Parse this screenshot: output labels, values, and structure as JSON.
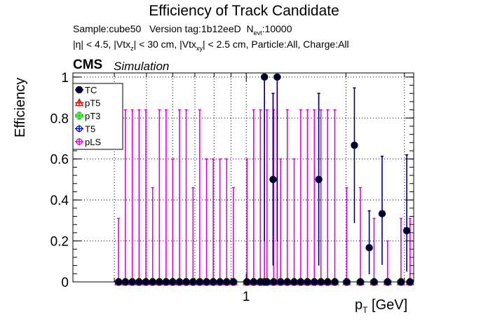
{
  "title": "Efficiency of Track Candidate",
  "subtitle": {
    "sample": "Sample:cube50",
    "version": "Version tag:1b12eeD",
    "nevt_label": "N",
    "nevt_sub": "evt",
    "nevt_value": ":10000",
    "cuts_part1": "|η| < 4.5, |Vtx",
    "cuts_sub_z": "z",
    "cuts_part2": "| < 30 cm, |Vtx",
    "cuts_sub_xy": "xy",
    "cuts_part3": "| < 2.5 cm, Particle:All, Charge:All"
  },
  "cms_label": "CMS",
  "simulation_label": "Simulation",
  "chart_data": {
    "type": "scatter",
    "title": "Efficiency of Track Candidate",
    "xlabel_main": "p",
    "xlabel_sub": "T",
    "xlabel_unit": " [GeV]",
    "ylabel": "Efficiency",
    "x_scale": "log",
    "xlim": [
      0.3,
      3.2
    ],
    "ylim": [
      0,
      1.02
    ],
    "grid": true,
    "legend_position": "top-left",
    "y_ticks": [
      "0",
      "0.2",
      "0.4",
      "0.6",
      "0.8",
      "1"
    ],
    "x_tick_labels": [
      "1"
    ],
    "series": [
      {
        "name": "TC",
        "color": "#00007f",
        "marker": "filled-circle",
        "points": [
          {
            "x": 1.135,
            "y": 1.0,
            "yerr_lo": 0.8,
            "yerr_hi": 0.0
          },
          {
            "x": 1.205,
            "y": 0.5,
            "yerr_lo": 0.42,
            "yerr_hi": 0.42
          },
          {
            "x": 1.24,
            "y": 1.0,
            "yerr_lo": 0.8,
            "yerr_hi": 0.0
          },
          {
            "x": 1.655,
            "y": 0.5,
            "yerr_lo": 0.42,
            "yerr_hi": 0.42
          },
          {
            "x": 2.12,
            "y": 0.667,
            "yerr_lo": 0.38,
            "yerr_hi": 0.28
          },
          {
            "x": 2.35,
            "y": 0.167,
            "yerr_lo": 0.13,
            "yerr_hi": 0.18
          },
          {
            "x": 2.57,
            "y": 0.333,
            "yerr_lo": 0.25,
            "yerr_hi": 0.28
          },
          {
            "x": 3.05,
            "y": 0.25,
            "yerr_lo": 0.2,
            "yerr_hi": 0.37
          }
        ]
      },
      {
        "name": "pT5",
        "color": "#ff0000",
        "marker": "open-triangle",
        "points": []
      },
      {
        "name": "pT3",
        "color": "#00cc00",
        "marker": "open-cross",
        "points": []
      },
      {
        "name": "T5",
        "color": "#0000ff",
        "marker": "open-circle",
        "points": []
      },
      {
        "name": "pLS",
        "color": "#e600e6",
        "marker": "open-circle",
        "points": [
          {
            "x": 0.412,
            "y": 0.0,
            "yerr_hi": 0.31
          },
          {
            "x": 0.432,
            "y": 0.0,
            "yerr_hi": 0.84
          },
          {
            "x": 0.453,
            "y": 0.0,
            "yerr_hi": 0.84
          },
          {
            "x": 0.475,
            "y": 0.0,
            "yerr_hi": 0.84
          },
          {
            "x": 0.498,
            "y": 0.0,
            "yerr_hi": 0.84
          },
          {
            "x": 0.522,
            "y": 0.0,
            "yerr_hi": 0.46
          },
          {
            "x": 0.547,
            "y": 0.0,
            "yerr_hi": 0.84
          },
          {
            "x": 0.573,
            "y": 0.0,
            "yerr_hi": 0.84
          },
          {
            "x": 0.6,
            "y": 0.0,
            "yerr_hi": 0.6
          },
          {
            "x": 0.629,
            "y": 0.0,
            "yerr_hi": 0.84
          },
          {
            "x": 0.659,
            "y": 0.0,
            "yerr_hi": 0.84
          },
          {
            "x": 0.691,
            "y": 0.0,
            "yerr_hi": 0.46
          },
          {
            "x": 0.724,
            "y": 0.0,
            "yerr_hi": 0.84
          },
          {
            "x": 0.759,
            "y": 0.0,
            "yerr_hi": 0.6
          },
          {
            "x": 0.795,
            "y": 0.0,
            "yerr_hi": 0.6
          },
          {
            "x": 0.833,
            "y": 0.0,
            "yerr_hi": 0.6
          },
          {
            "x": 0.873,
            "y": 0.0,
            "yerr_hi": 0.6
          },
          {
            "x": 0.915,
            "y": 0.0,
            "yerr_hi": 0.46
          },
          {
            "x": 1.005,
            "y": 0.0,
            "yerr_hi": 0.6
          },
          {
            "x": 1.053,
            "y": 0.0,
            "yerr_hi": 0.84
          },
          {
            "x": 1.103,
            "y": 0.0,
            "yerr_hi": 0.84
          },
          {
            "x": 1.155,
            "y": 0.0,
            "yerr_hi": 0.84
          },
          {
            "x": 1.21,
            "y": 0.0,
            "yerr_hi": 0.84
          },
          {
            "x": 1.27,
            "y": 0.0,
            "yerr_hi": 0.6
          },
          {
            "x": 1.33,
            "y": 0.0,
            "yerr_hi": 0.84
          },
          {
            "x": 1.395,
            "y": 0.0,
            "yerr_hi": 0.6
          },
          {
            "x": 1.46,
            "y": 0.0,
            "yerr_hi": 0.84
          },
          {
            "x": 1.53,
            "y": 0.0,
            "yerr_hi": 0.84
          },
          {
            "x": 1.605,
            "y": 0.0,
            "yerr_hi": 0.84
          },
          {
            "x": 1.68,
            "y": 0.0,
            "yerr_hi": 0.84
          },
          {
            "x": 1.76,
            "y": 0.0,
            "yerr_hi": 0.84
          },
          {
            "x": 1.85,
            "y": 0.0,
            "yerr_hi": 0.84
          },
          {
            "x": 2.01,
            "y": 0.0,
            "yerr_hi": 0.46
          },
          {
            "x": 2.21,
            "y": 0.0,
            "yerr_hi": 0.46
          },
          {
            "x": 2.43,
            "y": 0.0,
            "yerr_hi": 0.31
          },
          {
            "x": 2.67,
            "y": 0.0,
            "yerr_hi": 0.2
          },
          {
            "x": 2.93,
            "y": 0.0,
            "yerr_hi": 0.31
          },
          {
            "x": 3.12,
            "y": 0.0,
            "yerr_hi": 0.31
          },
          {
            "x": 1.135,
            "y": 0.0,
            "yerr_hi": 1.0
          },
          {
            "x": 1.24,
            "y": 1.0,
            "yerr_lo": 1.0,
            "yerr_hi": 0.0
          },
          {
            "x": 1.205,
            "y": 0.5,
            "yerr_lo": 0.42,
            "yerr_hi": 0.42
          },
          {
            "x": 1.655,
            "y": 0.5,
            "yerr_lo": 0.42,
            "yerr_hi": 0.42
          }
        ]
      }
    ]
  }
}
